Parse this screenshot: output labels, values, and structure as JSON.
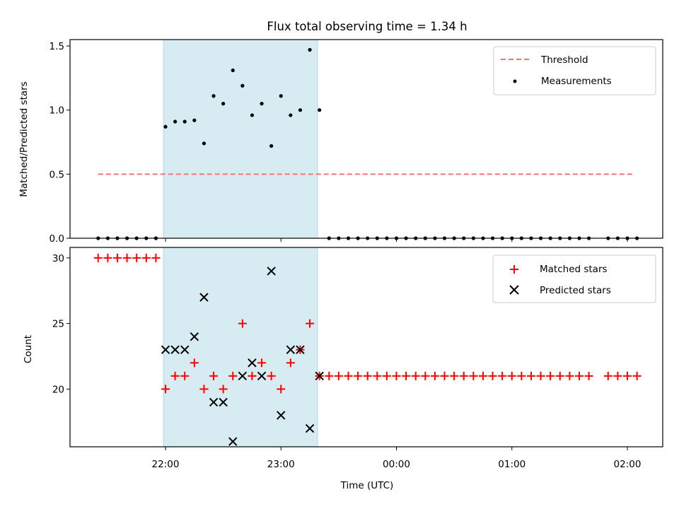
{
  "chart_data": [
    {
      "type": "scatter",
      "title": "Flux total observing time = 1.34 h",
      "xlabel": "",
      "ylabel": "Matched/Predicted stars",
      "ylim": [
        0,
        1.55
      ],
      "yticks": [
        "0.0",
        "0.5",
        "1.0",
        "1.5"
      ],
      "ytick_values": [
        0,
        0.5,
        1.0,
        1.5
      ],
      "shaded_region": {
        "x_start": "21:59",
        "x_end": "23:19",
        "color": "#add8e6"
      },
      "legend": {
        "placement": "top-right",
        "entries": [
          "Threshold",
          "Measurements"
        ]
      },
      "series": [
        {
          "name": "Threshold",
          "kind": "dashed-line",
          "color": "#ff7070",
          "x": [
            "21:25",
            "02:03"
          ],
          "y": [
            0.5,
            0.5
          ]
        },
        {
          "name": "Measurements",
          "kind": "dots",
          "color": "#000000",
          "x": [
            "21:25",
            "21:30",
            "21:35",
            "21:40",
            "21:45",
            "21:50",
            "21:55",
            "22:00",
            "22:05",
            "22:10",
            "22:15",
            "22:20",
            "22:25",
            "22:30",
            "22:35",
            "22:40",
            "22:45",
            "22:50",
            "22:55",
            "23:00",
            "23:05",
            "23:10",
            "23:15",
            "23:20",
            "23:25",
            "23:30",
            "23:35",
            "23:40",
            "23:45",
            "23:50",
            "23:55",
            "00:00",
            "00:05",
            "00:10",
            "00:15",
            "00:20",
            "00:25",
            "00:30",
            "00:35",
            "00:40",
            "00:45",
            "00:50",
            "00:55",
            "01:00",
            "01:05",
            "01:10",
            "01:15",
            "01:20",
            "01:25",
            "01:30",
            "01:35",
            "01:40",
            "01:50",
            "01:55",
            "02:00",
            "02:05"
          ],
          "y": [
            0,
            0,
            0,
            0,
            0,
            0,
            0,
            0.87,
            0.91,
            0.91,
            0.92,
            0.74,
            1.11,
            1.05,
            1.31,
            1.19,
            0.96,
            1.05,
            0.72,
            1.11,
            0.96,
            1.0,
            1.47,
            1.0,
            0,
            0,
            0,
            0,
            0,
            0,
            0,
            0,
            0,
            0,
            0,
            0,
            0,
            0,
            0,
            0,
            0,
            0,
            0,
            0,
            0,
            0,
            0,
            0,
            0,
            0,
            0,
            0,
            0,
            0,
            0,
            0
          ]
        }
      ]
    },
    {
      "type": "scatter",
      "xlabel": "Time (UTC)",
      "ylabel": "Count",
      "xticks": [
        "22:00",
        "23:00",
        "00:00",
        "01:00",
        "02:00"
      ],
      "yticks": [
        "20",
        "25",
        "30"
      ],
      "ytick_values": [
        20,
        25,
        30
      ],
      "ylim": [
        15.6,
        30.8
      ],
      "legend": {
        "placement": "top-right",
        "entries": [
          "Matched stars",
          "Predicted stars"
        ]
      },
      "series": [
        {
          "name": "Matched stars",
          "marker": "plus",
          "color": "#ff0000",
          "x": [
            "21:25",
            "21:30",
            "21:35",
            "21:40",
            "21:45",
            "21:50",
            "21:55",
            "22:00",
            "22:05",
            "22:10",
            "22:15",
            "22:20",
            "22:25",
            "22:30",
            "22:35",
            "22:40",
            "22:45",
            "22:50",
            "22:55",
            "23:00",
            "23:05",
            "23:10",
            "23:15",
            "23:20",
            "23:25",
            "23:30",
            "23:35",
            "23:40",
            "23:45",
            "23:50",
            "23:55",
            "00:00",
            "00:05",
            "00:10",
            "00:15",
            "00:20",
            "00:25",
            "00:30",
            "00:35",
            "00:40",
            "00:45",
            "00:50",
            "00:55",
            "01:00",
            "01:05",
            "01:10",
            "01:15",
            "01:20",
            "01:25",
            "01:30",
            "01:35",
            "01:40",
            "01:50",
            "01:55",
            "02:00",
            "02:05"
          ],
          "y": [
            30,
            30,
            30,
            30,
            30,
            30,
            30,
            20,
            21,
            21,
            22,
            20,
            21,
            20,
            21,
            25,
            21,
            22,
            21,
            20,
            22,
            23,
            25,
            21,
            21,
            21,
            21,
            21,
            21,
            21,
            21,
            21,
            21,
            21,
            21,
            21,
            21,
            21,
            21,
            21,
            21,
            21,
            21,
            21,
            21,
            21,
            21,
            21,
            21,
            21,
            21,
            21,
            21,
            21,
            21,
            21
          ]
        },
        {
          "name": "Predicted stars",
          "marker": "x",
          "color": "#000000",
          "x": [
            "22:00",
            "22:05",
            "22:10",
            "22:15",
            "22:20",
            "22:25",
            "22:30",
            "22:35",
            "22:40",
            "22:45",
            "22:50",
            "22:55",
            "23:00",
            "23:05",
            "23:10",
            "23:15",
            "23:20"
          ],
          "y": [
            23,
            23,
            23,
            24,
            27,
            19,
            19,
            16,
            21,
            22,
            21,
            29,
            18,
            23,
            23,
            17,
            21
          ]
        }
      ]
    }
  ]
}
